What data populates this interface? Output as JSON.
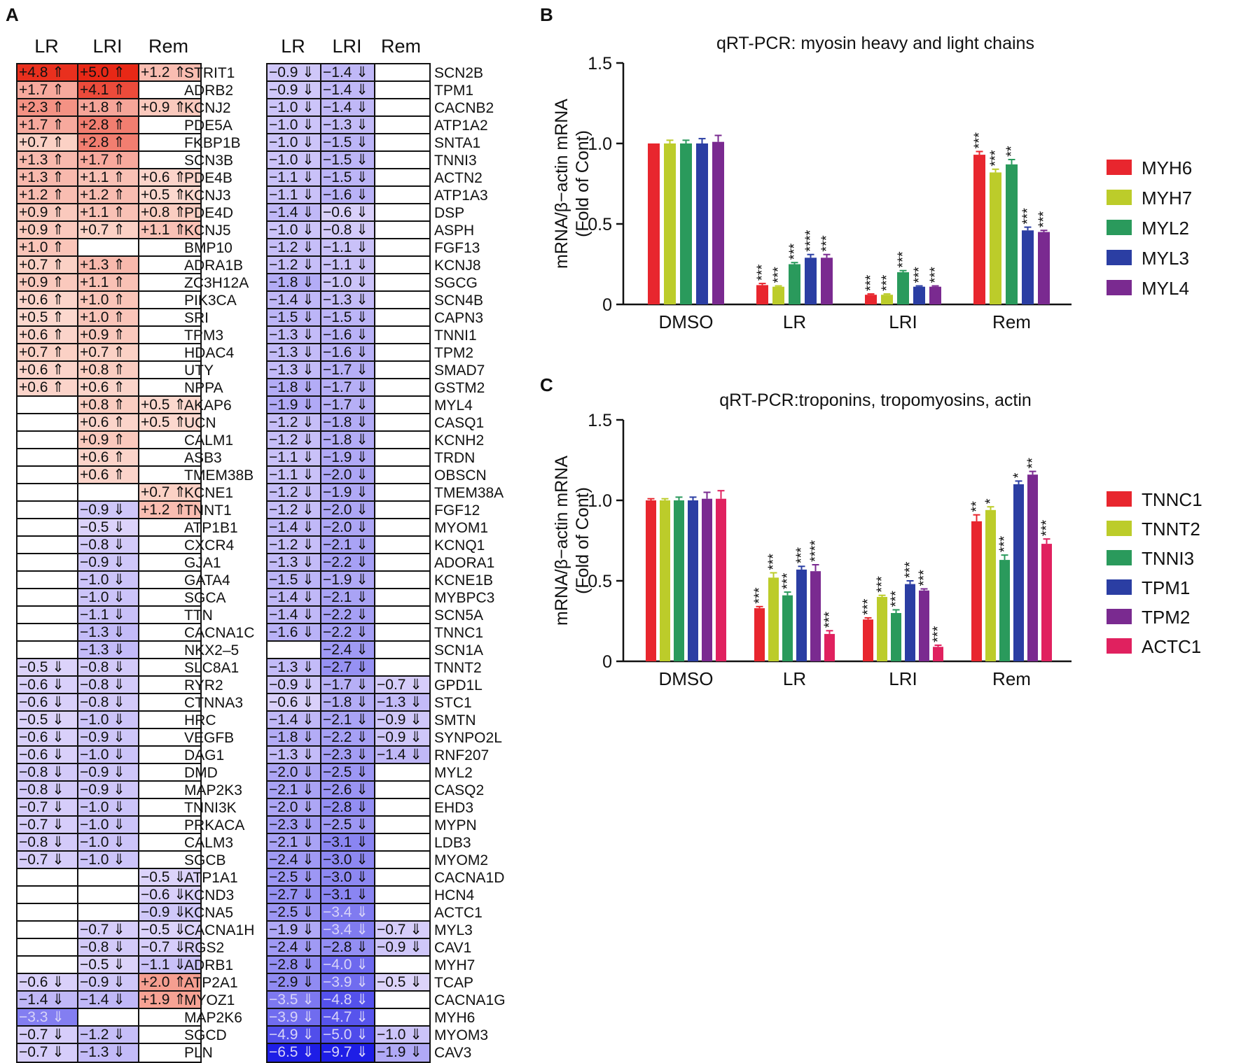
{
  "panels": {
    "a": "A",
    "b": "B",
    "c": "C"
  },
  "heatmap": {
    "headers": [
      "LR",
      "LRI",
      "Rem"
    ],
    "left": {
      "genes": [
        "STRIT1",
        "ADRB2",
        "KCNJ2",
        "PDE5A",
        "FKBP1B",
        "SCN3B",
        "PDE4B",
        "KCNJ3",
        "PDE4D",
        "KCNJ5",
        "BMP10",
        "ADRA1B",
        "ZC3H12A",
        "PIK3CA",
        "SRI",
        "TPM3",
        "HDAC4",
        "UTY",
        "NPPA",
        "AKAP6",
        "UCN",
        "CALM1",
        "ASB3",
        "TMEM38B",
        "KCNE1",
        "TNNT1",
        "ATP1B1",
        "CXCR4",
        "GJA1",
        "GATA4",
        "SGCA",
        "TTN",
        "CACNA1C",
        "NKX2–5",
        "SLC8A1",
        "RYR2",
        "CTNNA3",
        "HRC",
        "VEGFB",
        "DAG1",
        "DMD",
        "MAP2K3",
        "TNNI3K",
        "PRKACA",
        "CALM3",
        "SGCB",
        "ATP1A1",
        "KCND3",
        "KCNA5",
        "CACNA1H",
        "RGS2",
        "ADRB1",
        "ATP2A1",
        "MYOZ1",
        "MAP2K6",
        "SGCD",
        "PLN"
      ],
      "values": [
        [
          "+4.8 ⇑",
          "+5.0 ⇑",
          "+1.2 ⇑"
        ],
        [
          "+1.7 ⇑",
          "+4.1 ⇑",
          ""
        ],
        [
          "+2.3 ⇑",
          "+1.8 ⇑",
          "+0.9 ⇑"
        ],
        [
          "+1.7 ⇑",
          "+2.8 ⇑",
          ""
        ],
        [
          "+0.7 ⇑",
          "+2.8 ⇑",
          ""
        ],
        [
          "+1.3 ⇑",
          "+1.7 ⇑",
          ""
        ],
        [
          "+1.3 ⇑",
          "+1.1 ⇑",
          "+0.6 ⇑"
        ],
        [
          "+1.2 ⇑",
          "+1.2 ⇑",
          "+0.5 ⇑"
        ],
        [
          "+0.9 ⇑",
          "+1.1 ⇑",
          "+0.8 ⇑"
        ],
        [
          "+0.9 ⇑",
          "+0.7 ⇑",
          "+1.1 ⇑"
        ],
        [
          "+1.0 ⇑",
          "",
          ""
        ],
        [
          "+0.7 ⇑",
          "+1.3 ⇑",
          ""
        ],
        [
          "+0.9 ⇑",
          "+1.1 ⇑",
          ""
        ],
        [
          "+0.6 ⇑",
          "+1.0 ⇑",
          ""
        ],
        [
          "+0.5 ⇑",
          "+1.0 ⇑",
          ""
        ],
        [
          "+0.6 ⇑",
          "+0.9 ⇑",
          ""
        ],
        [
          "+0.7 ⇑",
          "+0.7 ⇑",
          ""
        ],
        [
          "+0.6 ⇑",
          "+0.8 ⇑",
          ""
        ],
        [
          "+0.6 ⇑",
          "+0.6 ⇑",
          ""
        ],
        [
          "",
          "+0.8 ⇑",
          "+0.5 ⇑"
        ],
        [
          "",
          "+0.6 ⇑",
          "+0.5 ⇑"
        ],
        [
          "",
          "+0.9 ⇑",
          ""
        ],
        [
          "",
          "+0.6 ⇑",
          ""
        ],
        [
          "",
          "+0.6 ⇑",
          ""
        ],
        [
          "",
          "",
          "+0.7 ⇑"
        ],
        [
          "",
          "−0.9 ⇓",
          "+1.2 ⇑"
        ],
        [
          "",
          "−0.5 ⇓",
          ""
        ],
        [
          "",
          "−0.8 ⇓",
          ""
        ],
        [
          "",
          "−0.9 ⇓",
          ""
        ],
        [
          "",
          "−1.0 ⇓",
          ""
        ],
        [
          "",
          "−1.0 ⇓",
          ""
        ],
        [
          "",
          "−1.1 ⇓",
          ""
        ],
        [
          "",
          "−1.3 ⇓",
          ""
        ],
        [
          "",
          "−1.3 ⇓",
          ""
        ],
        [
          "−0.5 ⇓",
          "−0.8 ⇓",
          ""
        ],
        [
          "−0.6 ⇓",
          "−0.8 ⇓",
          ""
        ],
        [
          "−0.6 ⇓",
          "−0.8 ⇓",
          ""
        ],
        [
          "−0.5 ⇓",
          "−1.0 ⇓",
          ""
        ],
        [
          "−0.6 ⇓",
          "−0.9 ⇓",
          ""
        ],
        [
          "−0.6 ⇓",
          "−1.0 ⇓",
          ""
        ],
        [
          "−0.8 ⇓",
          "−0.9 ⇓",
          ""
        ],
        [
          "−0.8 ⇓",
          "−0.9 ⇓",
          ""
        ],
        [
          "−0.7 ⇓",
          "−1.0 ⇓",
          ""
        ],
        [
          "−0.7 ⇓",
          "−1.0 ⇓",
          ""
        ],
        [
          "−0.8 ⇓",
          "−1.0 ⇓",
          ""
        ],
        [
          "−0.7 ⇓",
          "−1.0 ⇓",
          ""
        ],
        [
          "",
          "",
          "−0.5 ⇓"
        ],
        [
          "",
          "",
          "−0.6 ⇓"
        ],
        [
          "",
          "",
          "−0.9 ⇓"
        ],
        [
          "",
          "−0.7 ⇓",
          "−0.5 ⇓"
        ],
        [
          "",
          "−0.8 ⇓",
          "−0.7 ⇓"
        ],
        [
          "",
          "−0.5 ⇓",
          "−1.1 ⇓"
        ],
        [
          "−0.6 ⇓",
          "−0.9 ⇓",
          "+2.0 ⇑"
        ],
        [
          "−1.4 ⇓",
          "−1.4 ⇓",
          "+1.9 ⇑"
        ],
        [
          "−3.3 ⇓",
          "",
          ""
        ],
        [
          "−0.7 ⇓",
          "−1.2 ⇓",
          ""
        ],
        [
          "−0.7 ⇓",
          "−1.3 ⇓",
          ""
        ]
      ]
    },
    "right": {
      "genes": [
        "SCN2B",
        "TPM1",
        "CACNB2",
        "ATP1A2",
        "SNTA1",
        "TNNI3",
        "ACTN2",
        "ATP1A3",
        "DSP",
        "ASPH",
        "FGF13",
        "KCNJ8",
        "SGCG",
        "SCN4B",
        "CAPN3",
        "TNNI1",
        "TPM2",
        "SMAD7",
        "GSTM2",
        "MYL4",
        "CASQ1",
        "KCNH2",
        "TRDN",
        "OBSCN",
        "TMEM38A",
        "FGF12",
        "MYOM1",
        "KCNQ1",
        "ADORA1",
        "KCNE1B",
        "MYBPC3",
        "SCN5A",
        "TNNC1",
        "SCN1A",
        "TNNT2",
        "GPD1L",
        "STC1",
        "SMTN",
        "SYNPO2L",
        "RNF207",
        "MYL2",
        "CASQ2",
        "EHD3",
        "MYPN",
        "LDB3",
        "MYOM2",
        "CACNA1D",
        "HCN4",
        "ACTC1",
        "MYL3",
        "CAV1",
        "MYH7",
        "TCAP",
        "CACNA1G",
        "MYH6",
        "MYOM3",
        "CAV3"
      ],
      "values": [
        [
          "−0.9 ⇓",
          "−1.4 ⇓",
          ""
        ],
        [
          "−0.9 ⇓",
          "−1.4 ⇓",
          ""
        ],
        [
          "−1.0 ⇓",
          "−1.4 ⇓",
          ""
        ],
        [
          "−1.0 ⇓",
          "−1.3 ⇓",
          ""
        ],
        [
          "−1.0 ⇓",
          "−1.5 ⇓",
          ""
        ],
        [
          "−1.0 ⇓",
          "−1.5 ⇓",
          ""
        ],
        [
          "−1.1 ⇓",
          "−1.5 ⇓",
          ""
        ],
        [
          "−1.1 ⇓",
          "−1.6 ⇓",
          ""
        ],
        [
          "−1.4 ⇓",
          "−0.6 ⇓",
          ""
        ],
        [
          "−1.0 ⇓",
          "−0.8 ⇓",
          ""
        ],
        [
          "−1.2 ⇓",
          "−1.1 ⇓",
          ""
        ],
        [
          "−1.2 ⇓",
          "−1.1 ⇓",
          ""
        ],
        [
          "−1.8 ⇓",
          "−1.0 ⇓",
          ""
        ],
        [
          "−1.4 ⇓",
          "−1.3 ⇓",
          ""
        ],
        [
          "−1.5 ⇓",
          "−1.5 ⇓",
          ""
        ],
        [
          "−1.3 ⇓",
          "−1.6 ⇓",
          ""
        ],
        [
          "−1.3 ⇓",
          "−1.6 ⇓",
          ""
        ],
        [
          "−1.3 ⇓",
          "−1.7 ⇓",
          ""
        ],
        [
          "−1.8 ⇓",
          "−1.7 ⇓",
          ""
        ],
        [
          "−1.9 ⇓",
          "−1.7 ⇓",
          ""
        ],
        [
          "−1.2 ⇓",
          "−1.8 ⇓",
          ""
        ],
        [
          "−1.2 ⇓",
          "−1.8 ⇓",
          ""
        ],
        [
          "−1.1 ⇓",
          "−1.9 ⇓",
          ""
        ],
        [
          "−1.1 ⇓",
          "−2.0 ⇓",
          ""
        ],
        [
          "−1.2 ⇓",
          "−1.9 ⇓",
          ""
        ],
        [
          "−1.2 ⇓",
          "−2.0 ⇓",
          ""
        ],
        [
          "−1.4 ⇓",
          "−2.0 ⇓",
          ""
        ],
        [
          "−1.2 ⇓",
          "−2.1 ⇓",
          ""
        ],
        [
          "−1.3 ⇓",
          "−2.2 ⇓",
          ""
        ],
        [
          "−1.5 ⇓",
          "−1.9 ⇓",
          ""
        ],
        [
          "−1.4 ⇓",
          "−2.1 ⇓",
          ""
        ],
        [
          "−1.4 ⇓",
          "−2.2 ⇓",
          ""
        ],
        [
          "−1.6 ⇓",
          "−2.2 ⇓",
          ""
        ],
        [
          "",
          "−2.4 ⇓",
          ""
        ],
        [
          "−1.3 ⇓",
          "−2.7 ⇓",
          ""
        ],
        [
          "−0.9 ⇓",
          "−1.7 ⇓",
          "−0.7 ⇓"
        ],
        [
          "−0.6 ⇓",
          "−1.8 ⇓",
          "−1.3 ⇓"
        ],
        [
          "−1.4 ⇓",
          "−2.1 ⇓",
          "−0.9 ⇓"
        ],
        [
          "−1.8 ⇓",
          "−2.2 ⇓",
          "−0.9 ⇓"
        ],
        [
          "−1.3 ⇓",
          "−2.3 ⇓",
          "−1.4 ⇓"
        ],
        [
          "−2.0 ⇓",
          "−2.5 ⇓",
          ""
        ],
        [
          "−2.1 ⇓",
          "−2.6 ⇓",
          ""
        ],
        [
          "−2.0 ⇓",
          "−2.8 ⇓",
          ""
        ],
        [
          "−2.3 ⇓",
          "−2.5 ⇓",
          ""
        ],
        [
          "−2.1 ⇓",
          "−3.1 ⇓",
          ""
        ],
        [
          "−2.4 ⇓",
          "−3.0 ⇓",
          ""
        ],
        [
          "−2.5 ⇓",
          "−3.0 ⇓",
          ""
        ],
        [
          "−2.7 ⇓",
          "−3.1 ⇓",
          ""
        ],
        [
          "−2.5 ⇓",
          "−3.4 ⇓",
          ""
        ],
        [
          "−1.9 ⇓",
          "−3.4 ⇓",
          "−0.7 ⇓"
        ],
        [
          "−2.4 ⇓",
          "−2.8 ⇓",
          "−0.9 ⇓"
        ],
        [
          "−2.8 ⇓",
          "−4.0 ⇓",
          ""
        ],
        [
          "−2.9 ⇓",
          "−3.9 ⇓",
          "−0.5 ⇓"
        ],
        [
          "−3.5 ⇓",
          "−4.8 ⇓",
          ""
        ],
        [
          "−3.9 ⇓",
          "−4.7 ⇓",
          ""
        ],
        [
          "−4.9 ⇓",
          "−5.0 ⇓",
          "−1.0 ⇓"
        ],
        [
          "−6.5 ⇓",
          "−9.7 ⇓",
          "−1.9 ⇓"
        ]
      ]
    }
  },
  "chart_data": [
    {
      "type": "bar",
      "title": "qRT-PCR: myosin heavy and light chains",
      "ylabel": [
        "mRNA/β−actin mRNA",
        "(Fold of Cont)"
      ],
      "xlabel": "",
      "categories": [
        "DMSO",
        "LR",
        "LRI",
        "Rem"
      ],
      "ylim": [
        0,
        1.5
      ],
      "yticks": [
        "0",
        "0.5",
        "1.0",
        "1.5"
      ],
      "series": [
        {
          "name": "MYH6",
          "color": "#e8262e",
          "values": [
            1.0,
            0.12,
            0.06,
            0.93
          ],
          "errors": [
            0,
            0.01,
            0.005,
            0.02
          ],
          "sig": [
            "",
            "***",
            "***",
            "***"
          ]
        },
        {
          "name": "MYH7",
          "color": "#bccc2a",
          "values": [
            1.0,
            0.11,
            0.06,
            0.82
          ],
          "errors": [
            0.02,
            0.005,
            0.005,
            0.02
          ],
          "sig": [
            "",
            "***",
            "***",
            "***"
          ]
        },
        {
          "name": "MYL2",
          "color": "#2a9a5c",
          "values": [
            1.0,
            0.25,
            0.2,
            0.87
          ],
          "errors": [
            0.02,
            0.01,
            0.01,
            0.03
          ],
          "sig": [
            "",
            "***",
            "***",
            "**"
          ]
        },
        {
          "name": "MYL3",
          "color": "#2b3ea3",
          "values": [
            1.0,
            0.29,
            0.11,
            0.46
          ],
          "errors": [
            0.03,
            0.02,
            0.005,
            0.02
          ],
          "sig": [
            "",
            "****",
            "***",
            "***"
          ]
        },
        {
          "name": "MYL4",
          "color": "#7a2a90",
          "values": [
            1.01,
            0.29,
            0.11,
            0.45
          ],
          "errors": [
            0.04,
            0.02,
            0.005,
            0.01
          ],
          "sig": [
            "",
            "***",
            "***",
            "***"
          ]
        }
      ]
    },
    {
      "type": "bar",
      "title": "qRT-PCR:troponins, tropomyosins, actin",
      "ylabel": [
        "mRNA/β−actin mRNA",
        "(Fold of Cont)"
      ],
      "xlabel": "",
      "categories": [
        "DMSO",
        "LR",
        "LRI",
        "Rem"
      ],
      "ylim": [
        0,
        1.5
      ],
      "yticks": [
        "0",
        "0.5",
        "1.0",
        "1.5"
      ],
      "series": [
        {
          "name": "TNNC1",
          "color": "#e8262e",
          "values": [
            1.0,
            0.33,
            0.26,
            0.87
          ],
          "errors": [
            0.01,
            0.01,
            0.01,
            0.04
          ],
          "sig": [
            "",
            "***",
            "***",
            "**"
          ]
        },
        {
          "name": "TNNT2",
          "color": "#bccc2a",
          "values": [
            1.0,
            0.52,
            0.4,
            0.94
          ],
          "errors": [
            0.01,
            0.03,
            0.01,
            0.02
          ],
          "sig": [
            "",
            "***",
            "***",
            "*"
          ]
        },
        {
          "name": "TNNI3",
          "color": "#2a9a5c",
          "values": [
            1.0,
            0.41,
            0.3,
            0.63
          ],
          "errors": [
            0.02,
            0.02,
            0.02,
            0.03
          ],
          "sig": [
            "",
            "***",
            "***",
            "***"
          ]
        },
        {
          "name": "TPM1",
          "color": "#2b3ea3",
          "values": [
            1.0,
            0.57,
            0.48,
            1.1
          ],
          "errors": [
            0.02,
            0.02,
            0.02,
            0.02
          ],
          "sig": [
            "",
            "***",
            "***",
            "*"
          ]
        },
        {
          "name": "TPM2",
          "color": "#7a2a90",
          "values": [
            1.01,
            0.56,
            0.44,
            1.16
          ],
          "errors": [
            0.04,
            0.04,
            0.01,
            0.02
          ],
          "sig": [
            "",
            "****",
            "***",
            "**"
          ]
        },
        {
          "name": "ACTC1",
          "color": "#e0215f",
          "values": [
            1.01,
            0.17,
            0.09,
            0.73
          ],
          "errors": [
            0.05,
            0.02,
            0.01,
            0.03
          ],
          "sig": [
            "",
            "***",
            "***",
            "***"
          ]
        }
      ]
    }
  ]
}
